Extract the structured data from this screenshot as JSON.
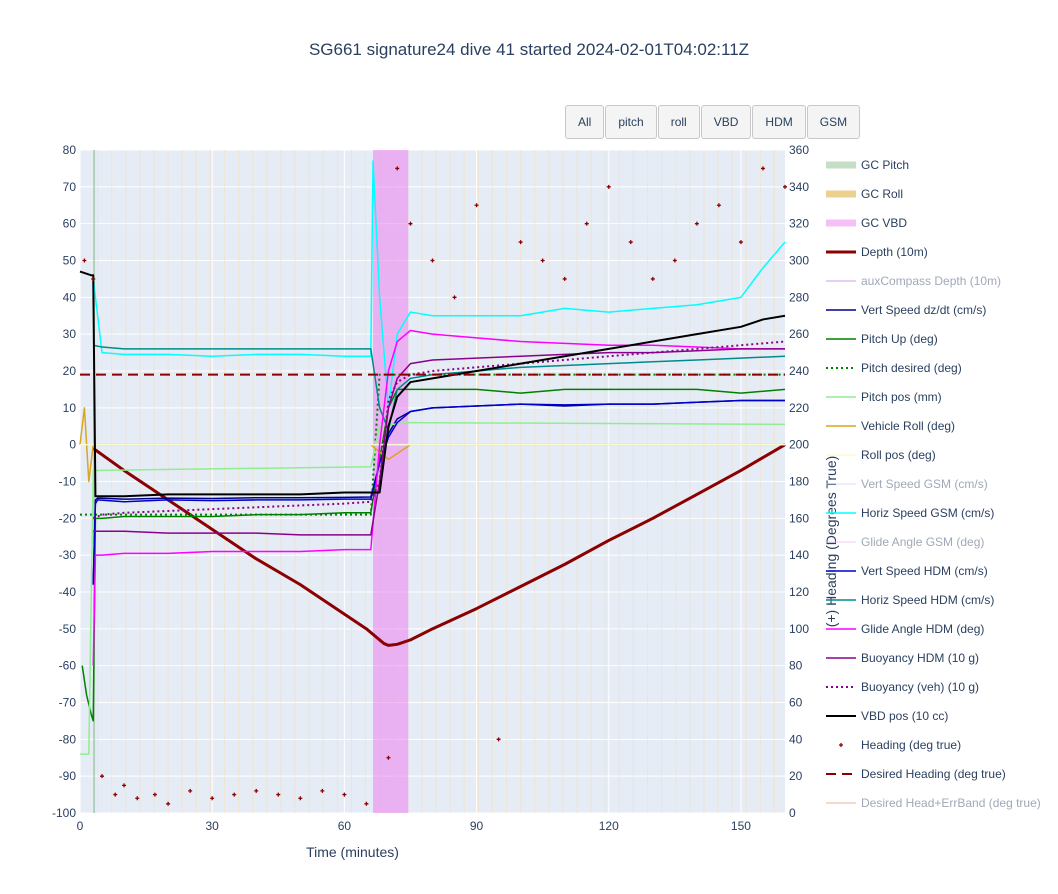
{
  "title": "SG661 signature24 dive 41 started 2024-02-01T04:02:11Z",
  "buttons": [
    {
      "label": "All"
    },
    {
      "label": "pitch"
    },
    {
      "label": "roll"
    },
    {
      "label": "VBD"
    },
    {
      "label": "HDM"
    },
    {
      "label": "GSM"
    }
  ],
  "chart_data": {
    "type": "line",
    "xlabel": "Time (minutes)",
    "ylabel": "",
    "y2label": "(+) Heading (Degrees True)",
    "xlim": [
      0,
      160
    ],
    "ylim": [
      -100,
      80
    ],
    "y2lim": [
      0,
      360
    ],
    "xticks": [
      0,
      30,
      60,
      90,
      120,
      150
    ],
    "yticks": [
      -100,
      -90,
      -80,
      -70,
      -60,
      -50,
      -40,
      -30,
      -20,
      -10,
      0,
      10,
      20,
      30,
      40,
      50,
      60,
      70,
      80
    ],
    "y2ticks": [
      0,
      20,
      40,
      60,
      80,
      100,
      120,
      140,
      160,
      180,
      200,
      220,
      240,
      260,
      280,
      300,
      320,
      340,
      360
    ],
    "grid": true,
    "legend_position": "right",
    "colors": {
      "plot_bg": "#e5ecf6",
      "grid": "#ffffff",
      "vbd_band": "#ee82ee"
    },
    "vbd_bands": [
      [
        66.5,
        74.5
      ]
    ],
    "series": [
      {
        "name": "GC Pitch",
        "color": "#8fbc8f",
        "style": "band",
        "legend_muted": false,
        "x": [
          3.2
        ],
        "y": [
          0
        ]
      },
      {
        "name": "GC Roll",
        "color": "#daa520",
        "style": "band",
        "legend_muted": false,
        "x": [],
        "y": []
      },
      {
        "name": "GC VBD",
        "color": "#ee82ee",
        "style": "band",
        "legend_muted": false,
        "x": [],
        "y": []
      },
      {
        "name": "Depth (10m)",
        "color": "#8b0000",
        "style": "solid",
        "width": 3,
        "legend_muted": false,
        "x": [
          3,
          10,
          20,
          30,
          40,
          50,
          60,
          65,
          69,
          70,
          72,
          75,
          80,
          90,
          100,
          110,
          120,
          130,
          140,
          150,
          160
        ],
        "y": [
          -1,
          -7,
          -15,
          -23,
          -31,
          -38,
          -46,
          -50,
          -54,
          -54.5,
          -54.2,
          -53,
          -50,
          -44.5,
          -38.5,
          -32.5,
          -26,
          -20,
          -13.5,
          -7,
          0
        ]
      },
      {
        "name": "auxCompass Depth (10m)",
        "color": "#c080e0",
        "style": "solid",
        "width": 1.5,
        "legend_muted": true,
        "x": [],
        "y": []
      },
      {
        "name": "Vert Speed dz/dt (cm/s)",
        "color": "#00008b",
        "style": "solid",
        "width": 1.5,
        "legend_muted": false,
        "x": [
          3,
          3.5,
          4,
          10,
          20,
          30,
          40,
          50,
          60,
          66,
          68,
          70,
          72,
          75,
          80,
          90,
          100,
          110,
          120,
          130,
          140,
          150,
          160
        ],
        "y": [
          -38,
          -15,
          -14.5,
          -14.8,
          -14.5,
          -14.6,
          -14.4,
          -14.4,
          -14.3,
          -14.2,
          -5,
          3,
          7,
          9,
          10,
          10.5,
          11,
          10.5,
          11,
          11,
          11.5,
          12,
          12
        ]
      },
      {
        "name": "Pitch Up (deg)",
        "color": "#008000",
        "style": "solid",
        "width": 1.5,
        "legend_muted": false,
        "x": [
          0.5,
          1.5,
          2.5,
          3,
          3.5,
          5,
          10,
          20,
          30,
          40,
          50,
          60,
          66,
          68,
          70,
          72,
          75,
          80,
          90,
          100,
          110,
          120,
          130,
          140,
          150,
          160
        ],
        "y": [
          -60,
          -68,
          -73,
          -75,
          -20,
          -20,
          -19.5,
          -19.5,
          -19.5,
          -19,
          -19,
          -18.5,
          -18.5,
          -4,
          10,
          15,
          15,
          15,
          15,
          14,
          15,
          15,
          15,
          15,
          14,
          15
        ]
      },
      {
        "name": "Pitch desired (deg)",
        "color": "#008000",
        "style": "dot",
        "width": 2,
        "legend_muted": false,
        "x": [
          0,
          66,
          68,
          160
        ],
        "y": [
          -19,
          -19,
          19,
          19
        ]
      },
      {
        "name": "Pitch pos (mm)",
        "color": "#90ee90",
        "style": "solid",
        "width": 1.5,
        "legend_muted": false,
        "x": [
          0,
          2,
          3,
          66,
          68,
          74,
          160
        ],
        "y": [
          -84,
          -84,
          -7,
          -6,
          5,
          6,
          5.5
        ]
      },
      {
        "name": "Vehicle Roll (deg)",
        "color": "#daa520",
        "style": "solid",
        "width": 1.5,
        "legend_muted": false,
        "x": [
          0,
          1,
          2,
          3,
          5,
          66,
          70,
          75,
          160
        ],
        "y": [
          0,
          10,
          -10,
          0,
          0,
          0,
          -4,
          0,
          0
        ]
      },
      {
        "name": "Roll pos (deg)",
        "color": "#fafad2",
        "style": "solid",
        "width": 1.5,
        "legend_muted": false,
        "x": [
          0,
          66,
          70,
          160
        ],
        "y": [
          0,
          0,
          0,
          0
        ]
      },
      {
        "name": "Vert Speed GSM (cm/s)",
        "color": "#c8d6f0",
        "style": "solid",
        "width": 1.5,
        "legend_muted": true,
        "x": [],
        "y": []
      },
      {
        "name": "Horiz Speed GSM (cm/s)",
        "color": "#00ffff",
        "style": "solid",
        "width": 1.5,
        "legend_muted": false,
        "x": [
          3,
          5,
          10,
          20,
          30,
          40,
          50,
          60,
          66,
          66.5,
          68,
          70,
          72,
          75,
          80,
          90,
          100,
          110,
          120,
          130,
          140,
          150,
          155,
          160
        ],
        "y": [
          45,
          25,
          24.5,
          24.5,
          24,
          24.5,
          24.5,
          24,
          24,
          77,
          40,
          10,
          30,
          36,
          35,
          35,
          35,
          37,
          36,
          37,
          38,
          40,
          48,
          55
        ]
      },
      {
        "name": "Glide Angle GSM (deg)",
        "color": "#f0c0f0",
        "style": "solid",
        "width": 1.5,
        "legend_muted": true,
        "x": [],
        "y": []
      },
      {
        "name": "Vert Speed HDM (cm/s)",
        "color": "#0000cd",
        "style": "solid",
        "width": 1.5,
        "legend_muted": false,
        "x": [
          3,
          3.5,
          4,
          10,
          20,
          30,
          40,
          50,
          60,
          66,
          68,
          70,
          72,
          75,
          80,
          90,
          100,
          110,
          120,
          130,
          140,
          150,
          160
        ],
        "y": [
          -38,
          -16,
          -15,
          -15.5,
          -15,
          -15.2,
          -15,
          -15,
          -14.8,
          -14.8,
          -5,
          2,
          6,
          9,
          10,
          10.5,
          11,
          10.8,
          11,
          11,
          11.5,
          12,
          12
        ]
      },
      {
        "name": "Horiz Speed HDM (cm/s)",
        "color": "#008b8b",
        "style": "solid",
        "width": 1.5,
        "legend_muted": false,
        "x": [
          3,
          5,
          10,
          20,
          30,
          40,
          50,
          60,
          66,
          68,
          70,
          72,
          75,
          80,
          90,
          100,
          110,
          120,
          130,
          140,
          150,
          160
        ],
        "y": [
          27,
          26.5,
          26,
          26,
          26,
          26,
          26,
          26,
          26,
          10,
          4,
          15,
          18,
          19,
          20,
          21,
          21.5,
          22,
          22.5,
          23,
          23.5,
          24
        ]
      },
      {
        "name": "Glide Angle HDM (deg)",
        "color": "#ff00ff",
        "style": "solid",
        "width": 1.5,
        "legend_muted": false,
        "x": [
          3,
          3.5,
          5,
          10,
          20,
          30,
          40,
          50,
          60,
          66,
          68,
          70,
          72,
          75,
          80,
          90,
          100,
          110,
          120,
          130,
          140,
          150,
          160
        ],
        "y": [
          -60,
          -30,
          -30,
          -29.5,
          -29.5,
          -29,
          -29,
          -29,
          -28.5,
          -28.5,
          0,
          20,
          28,
          31,
          30,
          29,
          28,
          27.5,
          27,
          27,
          26.5,
          26,
          26
        ]
      },
      {
        "name": "Buoyancy HDM (10 g)",
        "color": "#8b008b",
        "style": "solid",
        "width": 1.5,
        "legend_muted": false,
        "x": [
          3,
          5,
          10,
          20,
          30,
          40,
          50,
          60,
          66,
          68,
          70,
          72,
          75,
          80,
          90,
          100,
          110,
          120,
          130,
          140,
          150,
          160
        ],
        "y": [
          -23.5,
          -23.5,
          -23.5,
          -24,
          -24,
          -24,
          -24.5,
          -24.5,
          -24.5,
          -10,
          10,
          18,
          22,
          23,
          23.5,
          24,
          24.5,
          25,
          25,
          25.5,
          26,
          26
        ]
      },
      {
        "name": "Buoyancy (veh) (10 g)",
        "color": "#8b008b",
        "style": "dot",
        "width": 2,
        "legend_muted": false,
        "x": [
          3,
          5,
          10,
          20,
          30,
          40,
          50,
          60,
          66,
          68,
          70,
          72,
          75,
          80,
          90,
          100,
          110,
          120,
          130,
          140,
          150,
          160
        ],
        "y": [
          -20,
          -19,
          -18.5,
          -18,
          -17.5,
          -17,
          -16.5,
          -16,
          -15.5,
          -10,
          12,
          17,
          19,
          20,
          21,
          22,
          23,
          24,
          25,
          26,
          27,
          28
        ]
      },
      {
        "name": "VBD pos (10 cc)",
        "color": "#000000",
        "style": "solid",
        "width": 2,
        "legend_muted": false,
        "x": [
          0,
          2.5,
          3,
          3.5,
          5,
          10,
          20,
          30,
          40,
          50,
          60,
          66,
          68,
          70,
          72,
          75,
          80,
          90,
          100,
          110,
          120,
          130,
          140,
          150,
          155,
          160
        ],
        "y": [
          47,
          46,
          46,
          -14,
          -14,
          -14,
          -13.5,
          -13.5,
          -13.5,
          -13.5,
          -13,
          -13,
          -13,
          5,
          13,
          17,
          18,
          20,
          22,
          24,
          26,
          28,
          30,
          32,
          34,
          35
        ]
      },
      {
        "name": "Heading (deg true)",
        "color": "#8b0000",
        "style": "marker",
        "legend_muted": false,
        "axis": "y2",
        "x": [
          1,
          3,
          5,
          8,
          10,
          13,
          17,
          20,
          25,
          30,
          35,
          40,
          45,
          50,
          55,
          60,
          65,
          70,
          72,
          75,
          80,
          85,
          90,
          95,
          100,
          105,
          110,
          115,
          120,
          125,
          130,
          135,
          140,
          145,
          150,
          155,
          160
        ],
        "y": [
          300,
          290,
          20,
          10,
          15,
          8,
          10,
          5,
          12,
          8,
          10,
          12,
          10,
          8,
          12,
          10,
          5,
          30,
          350,
          320,
          300,
          280,
          330,
          40,
          310,
          300,
          290,
          320,
          340,
          310,
          290,
          300,
          320,
          330,
          310,
          350,
          340
        ]
      },
      {
        "name": "Desired Heading (deg true)",
        "color": "#8b0000",
        "style": "dash",
        "width": 2,
        "legend_muted": false,
        "axis": "y2",
        "x": [
          0,
          160
        ],
        "y": [
          238,
          238
        ]
      },
      {
        "name": "Desired Head+ErrBand (deg true)",
        "color": "#e9967a",
        "style": "solid",
        "width": 1.5,
        "legend_muted": true,
        "axis": "y2",
        "x": [],
        "y": []
      }
    ]
  }
}
